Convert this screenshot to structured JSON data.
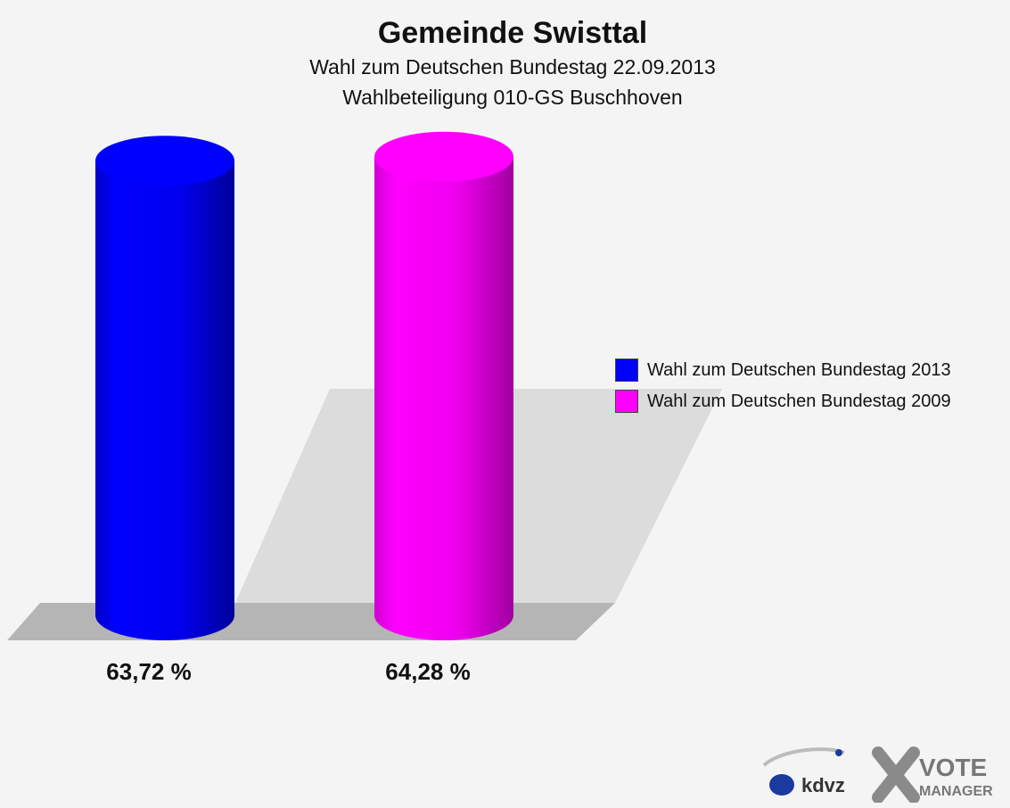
{
  "titles": {
    "main": "Gemeinde Swisttal",
    "sub1": "Wahl zum Deutschen Bundestag 22.09.2013",
    "sub2": "Wahlbeteiligung 010-GS Buschhoven"
  },
  "chart_data": {
    "type": "bar",
    "title": "Gemeinde Swisttal",
    "subtitle": "Wahl zum Deutschen Bundestag 22.09.2013 — Wahlbeteiligung 010-GS Buschhoven",
    "xlabel": "",
    "ylabel": "",
    "ylim": [
      0,
      100
    ],
    "series": [
      {
        "name": "Wahl zum Deutschen Bundestag 2013",
        "value": 63.72,
        "label": "63,72 %",
        "color": "#0000ff"
      },
      {
        "name": "Wahl zum Deutschen Bundestag 2009",
        "value": 64.28,
        "label": "64,28 %",
        "color": "#ff00ff"
      }
    ],
    "legend_position": "right",
    "grid": false
  },
  "logo": {
    "kdvz_text": "kdvz",
    "vote_text": "VOTE",
    "manager_text": "MANAGER"
  }
}
